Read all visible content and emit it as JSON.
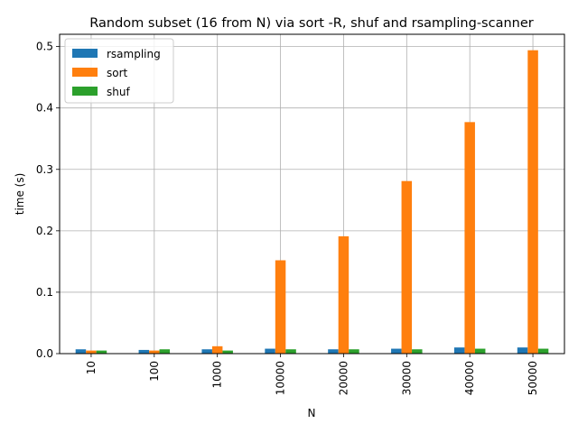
{
  "chart_data": {
    "type": "bar",
    "title": "Random subset (16 from N) via sort -R, shuf and rsampling-scanner",
    "xlabel": "N",
    "ylabel": "time (s)",
    "categories": [
      "10",
      "100",
      "1000",
      "10000",
      "20000",
      "30000",
      "40000",
      "50000"
    ],
    "ylim": [
      0,
      0.52
    ],
    "yticks": [
      "0.0",
      "0.1",
      "0.2",
      "0.3",
      "0.4",
      "0.5"
    ],
    "grid": true,
    "legend_position": "top-left",
    "series": [
      {
        "name": "rsampling",
        "color": "#1f77b4",
        "values": [
          0.007,
          0.006,
          0.007,
          0.008,
          0.007,
          0.008,
          0.01,
          0.01
        ]
      },
      {
        "name": "sort",
        "color": "#ff7f0e",
        "values": [
          0.005,
          0.005,
          0.012,
          0.152,
          0.191,
          0.281,
          0.377,
          0.494
        ]
      },
      {
        "name": "shuf",
        "color": "#2ca02c",
        "values": [
          0.005,
          0.007,
          0.005,
          0.007,
          0.007,
          0.007,
          0.008,
          0.008
        ]
      }
    ]
  }
}
